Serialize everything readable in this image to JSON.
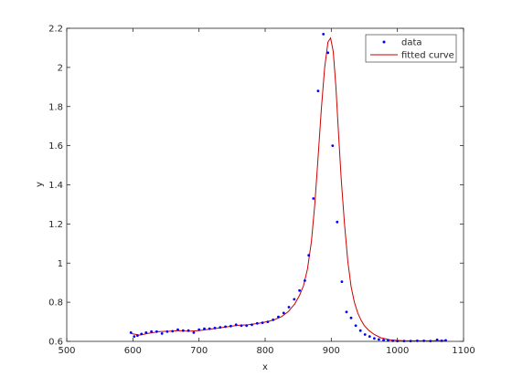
{
  "chart_data": {
    "type": "scatter",
    "title": "",
    "xlabel": "x",
    "ylabel": "y",
    "xlim": [
      500,
      1100
    ],
    "ylim": [
      0.6,
      2.2
    ],
    "xticks": [
      500,
      600,
      700,
      800,
      900,
      1000,
      1100
    ],
    "yticks": [
      0.6,
      0.8,
      1,
      1.2,
      1.4,
      1.6,
      1.8,
      2,
      2.2
    ],
    "xtick_labels": [
      "500",
      "600",
      "700",
      "800",
      "900",
      "1000",
      "1100"
    ],
    "ytick_labels": [
      "0.6",
      "0.8",
      "1",
      "1.2",
      "1.4",
      "1.6",
      "1.8",
      "2",
      "2.2"
    ],
    "grid": false,
    "legend_position": "top-right",
    "colors": {
      "data": "#0000ff",
      "fitted": "#cc0000",
      "axes": "#262626"
    },
    "series": [
      {
        "name": "data",
        "style": "markers",
        "x": [
          597,
          602,
          607,
          613,
          620,
          628,
          636,
          644,
          652,
          660,
          668,
          676,
          684,
          692,
          700,
          708,
          716,
          724,
          732,
          740,
          748,
          756,
          764,
          772,
          780,
          788,
          796,
          804,
          812,
          820,
          828,
          836,
          844,
          852,
          860,
          866,
          873,
          880,
          888,
          895,
          902,
          909,
          916,
          923,
          930,
          937,
          944,
          951,
          958,
          965,
          972,
          979,
          986,
          993,
          1000,
          1010,
          1020,
          1030,
          1040,
          1050,
          1060,
          1067,
          1073
        ],
        "y": [
          0.645,
          0.625,
          0.63,
          0.638,
          0.645,
          0.65,
          0.65,
          0.64,
          0.65,
          0.652,
          0.66,
          0.655,
          0.655,
          0.645,
          0.66,
          0.665,
          0.665,
          0.668,
          0.672,
          0.675,
          0.678,
          0.685,
          0.68,
          0.68,
          0.685,
          0.692,
          0.695,
          0.7,
          0.71,
          0.725,
          0.745,
          0.775,
          0.815,
          0.86,
          0.91,
          1.04,
          1.33,
          1.88,
          2.17,
          2.075,
          1.6,
          1.21,
          0.905,
          0.75,
          0.72,
          0.68,
          0.655,
          0.635,
          0.625,
          0.615,
          0.61,
          0.606,
          0.604,
          0.603,
          0.602,
          0.602,
          0.602,
          0.603,
          0.603,
          0.602,
          0.608,
          0.603,
          0.605
        ]
      },
      {
        "name": "fitted curve",
        "style": "line",
        "x": [
          597,
          610,
          625,
          640,
          655,
          670,
          685,
          700,
          715,
          730,
          745,
          760,
          775,
          790,
          805,
          815,
          825,
          835,
          845,
          852,
          858,
          864,
          870,
          875,
          880,
          885,
          890,
          895,
          899,
          903,
          907,
          911,
          915,
          920,
          925,
          930,
          935,
          940,
          945,
          950,
          957,
          965,
          975,
          990,
          1010,
          1030,
          1050,
          1073
        ],
        "y": [
          0.64,
          0.632,
          0.642,
          0.65,
          0.652,
          0.655,
          0.652,
          0.655,
          0.662,
          0.668,
          0.676,
          0.682,
          0.685,
          0.692,
          0.702,
          0.712,
          0.727,
          0.752,
          0.792,
          0.835,
          0.885,
          0.97,
          1.11,
          1.3,
          1.54,
          1.79,
          2.0,
          2.13,
          2.15,
          2.08,
          1.9,
          1.66,
          1.43,
          1.2,
          1.01,
          0.88,
          0.8,
          0.745,
          0.708,
          0.68,
          0.655,
          0.635,
          0.618,
          0.607,
          0.603,
          0.603,
          0.603,
          0.604
        ]
      }
    ]
  }
}
